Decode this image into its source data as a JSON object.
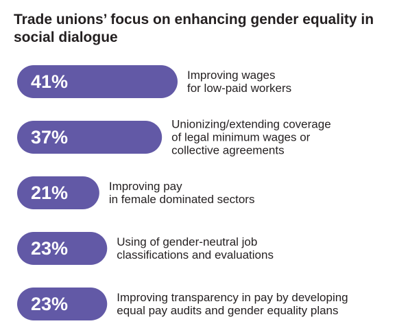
{
  "chart_data": {
    "type": "bar",
    "orientation": "horizontal",
    "title": "Trade unions’ focus on enhancing gender equality in social dialogue",
    "unit": "%",
    "categories": [
      [
        "Improving wages",
        "for low-paid workers"
      ],
      [
        "Unionizing/extending coverage",
        "of legal minimum wages or",
        "collective agreements"
      ],
      [
        "Improving pay",
        "in female dominated sectors"
      ],
      [
        "Using of gender-neutral job",
        "classifications and evaluations"
      ],
      [
        "Improving transparency in pay by developing",
        "equal pay audits and gender equality plans"
      ]
    ],
    "values": [
      41,
      37,
      21,
      23,
      23
    ],
    "value_labels": [
      "41%",
      "37%",
      "21%",
      "23%",
      "23%"
    ],
    "xlim": [
      0,
      41
    ],
    "colors": {
      "bar": "#6259a6",
      "value_text": "#ffffff",
      "label_text": "#231f20"
    }
  }
}
